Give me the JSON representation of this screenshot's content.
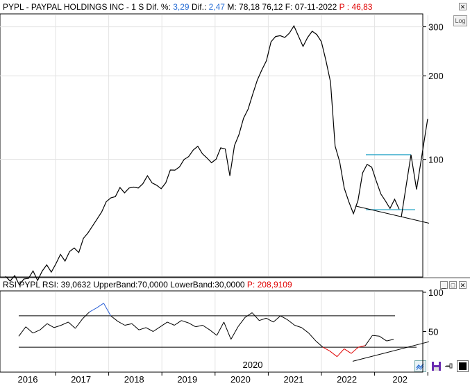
{
  "header": {
    "symbol": "PYPL",
    "sep1": " - ",
    "company": "PAYPAL HOLDINGS INC",
    "sep2": " - ",
    "period": "1 S",
    "dif_pct_label": "Dif. %:",
    "dif_pct_value": "3,29",
    "dif_label": "Dif.:",
    "dif_value": "2,47",
    "m_label": "M:",
    "m_value": "78,18",
    "m_value2": "76,12",
    "f_label": "F:",
    "f_value": "07-11-2022",
    "p_label": "P :",
    "p_value": "46,83"
  },
  "log_button": "Log",
  "rsi_header": {
    "prefix": "RSI PYPL",
    "rsi_label": "RSI:",
    "rsi_value": "39,0632",
    "upper_label": "UpperBand:",
    "upper_value": "70,0000",
    "lower_label": "LowerBand:",
    "lower_value": "30,0000",
    "p_label": "P:",
    "p_value": "208,9109"
  },
  "colors": {
    "price_line": "#000000",
    "channel": "#2aa6c8",
    "rsi_overbought": "#2a5fd6",
    "rsi_oversold": "#e00000",
    "grid": "#e3e3e3"
  },
  "chart_data": [
    {
      "type": "line",
      "name": "price",
      "scale": "log",
      "ylim": [
        38,
        330
      ],
      "yticks": [
        100,
        200,
        300
      ],
      "x_start": 2015.5,
      "x_end": 2023.1,
      "x_step": 0.0833,
      "values": [
        38,
        36,
        39,
        35,
        37,
        38,
        39,
        37,
        40,
        41,
        40,
        42,
        45,
        44,
        46,
        48,
        47,
        51,
        55,
        58,
        60,
        66,
        70,
        72,
        75,
        78,
        76,
        80,
        78,
        80,
        82,
        86,
        84,
        80,
        78,
        84,
        90,
        92,
        95,
        98,
        104,
        108,
        110,
        107,
        100,
        97,
        102,
        108,
        110,
        88,
        110,
        125,
        140,
        150,
        175,
        190,
        210,
        230,
        260,
        280,
        280,
        270,
        290,
        300,
        275,
        260,
        270,
        290,
        285,
        260,
        230,
        190,
        110,
        100,
        78,
        70,
        65,
        70,
        90,
        97,
        92,
        85,
        75,
        70,
        68,
        71,
        66
      ],
      "x_ticks": [
        "2016",
        "2017",
        "2018",
        "2019",
        "2020",
        "2021",
        "2022",
        "202"
      ],
      "cursor_label": "2020"
    },
    {
      "type": "line",
      "name": "RSI",
      "ylim": [
        0,
        100
      ],
      "yticks": [
        50,
        100
      ],
      "upper_band": 70,
      "lower_band": 30,
      "values": [
        44,
        56,
        48,
        52,
        60,
        55,
        58,
        62,
        54,
        66,
        75,
        80,
        86,
        70,
        63,
        58,
        60,
        52,
        55,
        50,
        56,
        62,
        58,
        64,
        61,
        56,
        58,
        52,
        45,
        62,
        40,
        56,
        68,
        74,
        64,
        67,
        62,
        70,
        65,
        58,
        55,
        48,
        38,
        30,
        25,
        18,
        28,
        22,
        30,
        32,
        45,
        44,
        38,
        40
      ]
    }
  ]
}
